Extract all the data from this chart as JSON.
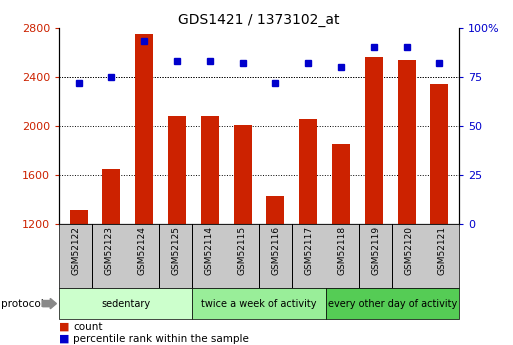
{
  "title": "GDS1421 / 1373102_at",
  "categories": [
    "GSM52122",
    "GSM52123",
    "GSM52124",
    "GSM52125",
    "GSM52114",
    "GSM52115",
    "GSM52116",
    "GSM52117",
    "GSM52118",
    "GSM52119",
    "GSM52120",
    "GSM52121"
  ],
  "bar_values": [
    1320,
    1650,
    2750,
    2080,
    2080,
    2010,
    1430,
    2060,
    1850,
    2560,
    2540,
    2340
  ],
  "percentile_values": [
    72,
    75,
    93,
    83,
    83,
    82,
    72,
    82,
    80,
    90,
    90,
    82
  ],
  "bar_color": "#cc2200",
  "dot_color": "#0000cc",
  "ylim_left": [
    1200,
    2800
  ],
  "ylim_right": [
    0,
    100
  ],
  "yticks_left": [
    1200,
    1600,
    2000,
    2400,
    2800
  ],
  "yticks_right": [
    0,
    25,
    50,
    75,
    100
  ],
  "grid_values": [
    1600,
    2000,
    2400
  ],
  "groups": [
    {
      "label": "sedentary",
      "start": 0,
      "end": 4,
      "color": "#ccffcc"
    },
    {
      "label": "twice a week of activity",
      "start": 4,
      "end": 8,
      "color": "#99ee99"
    },
    {
      "label": "every other day of activity",
      "start": 8,
      "end": 12,
      "color": "#55cc55"
    }
  ],
  "legend_count_label": "count",
  "legend_pct_label": "percentile rank within the sample",
  "protocol_label": "protocol",
  "xtick_bg_color": "#c8c8c8",
  "bar_bottom": 1200,
  "bar_width": 0.55
}
